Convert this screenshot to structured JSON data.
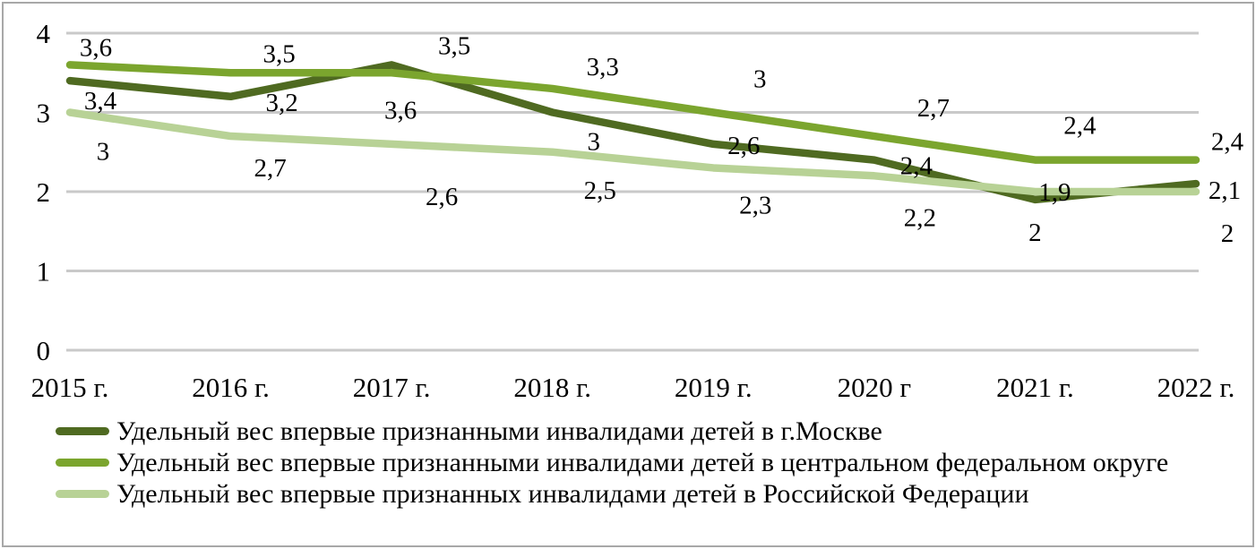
{
  "chart_data": {
    "type": "line",
    "title": "",
    "xlabel": "",
    "ylabel": "",
    "categories": [
      "2015 г.",
      "2016 г.",
      "2017 г.",
      "2018 г.",
      "2019 г.",
      "2020 г",
      "2021 г.",
      "2022 г."
    ],
    "series": [
      {
        "name": "Удельный вес впервые признанными инвалидами детей в г.Москве",
        "color": "#4F6A21",
        "values": [
          3.4,
          3.2,
          3.6,
          3,
          2.6,
          2.4,
          1.9,
          2.1
        ]
      },
      {
        "name": "Удельный вес впервые признанными инвалидами детей в центральном федеральном округе",
        "color": "#7BA52E",
        "values": [
          3.6,
          3.5,
          3.5,
          3.3,
          3,
          2.7,
          2.4,
          2.4
        ]
      },
      {
        "name": "Удельный вес впервые признанных инвалидами детей в Российской Федерации",
        "color": "#B8D296",
        "values": [
          3,
          2.7,
          2.6,
          2.5,
          2.3,
          2.2,
          2,
          2
        ]
      }
    ],
    "y_axis": {
      "min": 0,
      "max": 4,
      "ticks": [
        4,
        3,
        2,
        1,
        0
      ]
    },
    "grid": true,
    "data_labels": true,
    "decimal_separator": ",",
    "legend_position": "bottom-left",
    "colors": {
      "gridline": "#C9C9C9",
      "label_text": "#000000",
      "frame_border": "#A8A8A8"
    }
  }
}
